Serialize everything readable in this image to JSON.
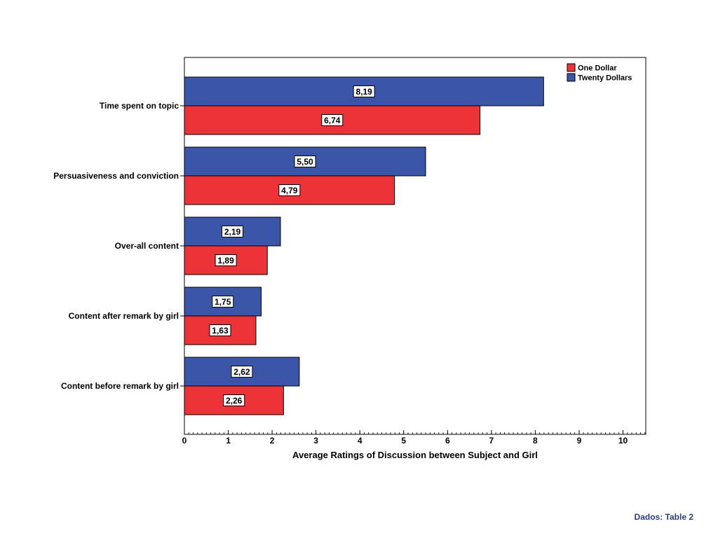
{
  "chart_data": {
    "type": "bar",
    "orientation": "horizontal",
    "categories": [
      "Time spent on topic",
      "Persuasiveness and conviction",
      "Over-all content",
      "Content after remark by girl",
      "Content before remark by girl"
    ],
    "series": [
      {
        "name": "Twenty Dollars",
        "color": "#3b55a8",
        "values": [
          8.19,
          5.5,
          2.19,
          1.75,
          2.62
        ],
        "value_labels": [
          "8,19",
          "5,50",
          "2,19",
          "1,75",
          "2,62"
        ]
      },
      {
        "name": "One Dollar",
        "color": "#ee3338",
        "values": [
          6.74,
          4.79,
          1.89,
          1.63,
          2.26
        ],
        "value_labels": [
          "6,74",
          "4,79",
          "1,89",
          "1,63",
          "2,26"
        ]
      }
    ],
    "xlabel": "Average Ratings of Discussion between Subject and Girl",
    "ylabel": "",
    "xlim": [
      0,
      10.5
    ],
    "major_ticks": [
      0,
      1,
      2,
      3,
      4,
      5,
      6,
      7,
      8,
      9,
      10
    ],
    "tick_labels": [
      "0",
      "1",
      "2",
      "3",
      "4",
      "5",
      "6",
      "7",
      "8",
      "9",
      "10"
    ],
    "minor_tick_step": 0.1,
    "grid": false,
    "legend": {
      "placement": "top-right",
      "entries": [
        {
          "label": "One Dollar",
          "color": "#ee3338"
        },
        {
          "label": "Twenty Dollars",
          "color": "#3b55a8"
        }
      ]
    }
  },
  "footer": {
    "note": "Dados: Table 2"
  }
}
